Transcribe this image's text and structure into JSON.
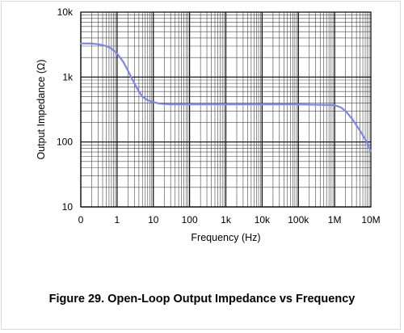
{
  "figure": {
    "caption": "Figure 29. Open-Loop Output Impedance vs Frequency"
  },
  "chart_data": {
    "type": "line",
    "title": "",
    "xlabel": "Frequency (Hz)",
    "ylabel": "Output Impedance (Ω)",
    "x_scale": "log",
    "y_scale": "log",
    "xlim": [
      0.1,
      10000000
    ],
    "ylim": [
      10,
      10000
    ],
    "x_tick_labels": [
      "0",
      "1",
      "10",
      "100",
      "1k",
      "10k",
      "100k",
      "1M",
      "10M"
    ],
    "y_tick_labels": [
      "10",
      "100",
      "1k",
      "10k"
    ],
    "grid": true,
    "line_color": "#7b86ee",
    "series": [
      {
        "x": [
          0.1,
          0.2,
          0.3,
          0.5,
          0.7,
          1,
          1.5,
          2,
          3,
          4,
          5,
          7,
          10,
          15,
          20,
          30,
          50,
          100,
          1000,
          10000,
          100000,
          300000,
          1000000,
          1500000,
          2000000,
          3000000,
          5000000,
          7000000,
          10000000
        ],
        "y": [
          3300,
          3280,
          3200,
          3000,
          2750,
          2300,
          1700,
          1250,
          800,
          600,
          500,
          440,
          410,
          390,
          385,
          380,
          380,
          380,
          380,
          380,
          380,
          375,
          370,
          340,
          300,
          230,
          150,
          110,
          72
        ]
      }
    ]
  }
}
